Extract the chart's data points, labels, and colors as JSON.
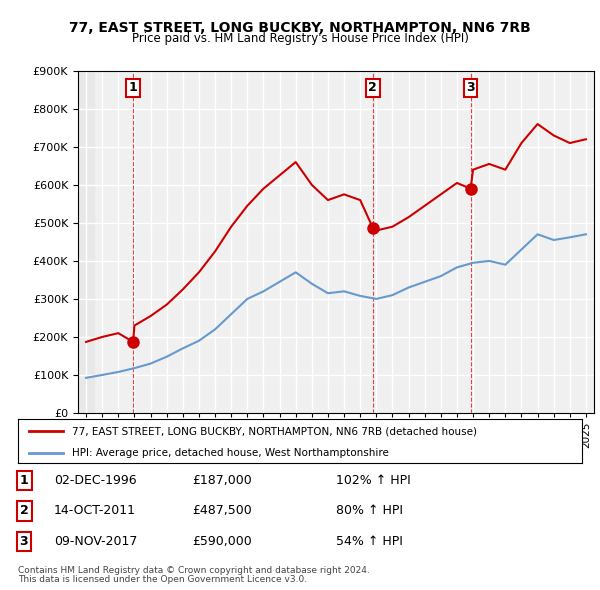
{
  "title1": "77, EAST STREET, LONG BUCKBY, NORTHAMPTON, NN6 7RB",
  "title2": "Price paid vs. HM Land Registry's House Price Index (HPI)",
  "legend_line1": "77, EAST STREET, LONG BUCKBY, NORTHAMPTON, NN6 7RB (detached house)",
  "legend_line2": "HPI: Average price, detached house, West Northamptonshire",
  "footer1": "Contains HM Land Registry data © Crown copyright and database right 2024.",
  "footer2": "This data is licensed under the Open Government Licence v3.0.",
  "table": [
    {
      "num": "1",
      "date": "02-DEC-1996",
      "price": "£187,000",
      "hpi": "102% ↑ HPI"
    },
    {
      "num": "2",
      "date": "14-OCT-2011",
      "price": "£487,500",
      "hpi": "80% ↑ HPI"
    },
    {
      "num": "3",
      "date": "09-NOV-2017",
      "price": "£590,000",
      "hpi": "54% ↑ HPI"
    }
  ],
  "sale_points": [
    {
      "year": 1996.92,
      "price": 187000,
      "label": "1"
    },
    {
      "year": 2011.78,
      "price": 487500,
      "label": "2"
    },
    {
      "year": 2017.85,
      "price": 590000,
      "label": "3"
    }
  ],
  "hpi_years": [
    1994,
    1995,
    1996,
    1997,
    1998,
    1999,
    2000,
    2001,
    2002,
    2003,
    2004,
    2005,
    2006,
    2007,
    2008,
    2009,
    2010,
    2011,
    2012,
    2013,
    2014,
    2015,
    2016,
    2017,
    2018,
    2019,
    2020,
    2021,
    2022,
    2023,
    2024,
    2025
  ],
  "hpi_values": [
    92500,
    100000,
    108000,
    118000,
    130000,
    148000,
    170000,
    190000,
    220000,
    260000,
    300000,
    320000,
    345000,
    370000,
    340000,
    315000,
    320000,
    308000,
    300000,
    310000,
    330000,
    345000,
    360000,
    383000,
    395000,
    400000,
    390000,
    430000,
    470000,
    455000,
    462000,
    470000
  ],
  "red_line_years": [
    1994,
    1995,
    1996,
    1996.92,
    1997,
    1998,
    1999,
    2000,
    2001,
    2002,
    2003,
    2004,
    2005,
    2006,
    2007,
    2008,
    2009,
    2010,
    2011,
    2011.78,
    2012,
    2013,
    2014,
    2015,
    2016,
    2017,
    2017.85,
    2018,
    2019,
    2020,
    2021,
    2022,
    2023,
    2024,
    2025
  ],
  "red_line_values": [
    187000,
    200000,
    210000,
    187000,
    230000,
    255000,
    285000,
    325000,
    370000,
    425000,
    490000,
    545000,
    590000,
    625000,
    660000,
    600000,
    560000,
    575000,
    560000,
    487500,
    480000,
    490000,
    515000,
    545000,
    575000,
    605000,
    590000,
    640000,
    655000,
    640000,
    710000,
    760000,
    730000,
    710000,
    720000
  ],
  "ylim": [
    0,
    900000
  ],
  "xlim": [
    1993.5,
    2025.5
  ],
  "xticks": [
    1994,
    1995,
    1996,
    1997,
    1998,
    1999,
    2000,
    2001,
    2002,
    2003,
    2004,
    2005,
    2006,
    2007,
    2008,
    2009,
    2010,
    2011,
    2012,
    2013,
    2014,
    2015,
    2016,
    2017,
    2018,
    2019,
    2020,
    2021,
    2022,
    2023,
    2024,
    2025
  ],
  "yticks": [
    0,
    100000,
    200000,
    300000,
    400000,
    500000,
    600000,
    700000,
    800000,
    900000
  ],
  "bg_color": "#ffffff",
  "plot_bg_color": "#f0f0f0",
  "red_color": "#cc0000",
  "blue_color": "#6699cc",
  "grid_color": "#ffffff",
  "hatch_color": "#e0e0e0"
}
